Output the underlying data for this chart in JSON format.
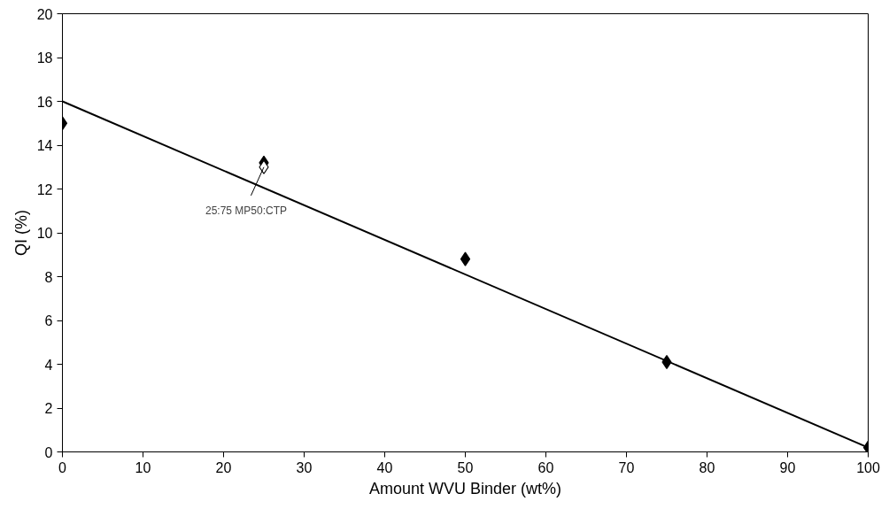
{
  "chart_data": {
    "type": "scatter",
    "xlabel": "Amount WVU Binder (wt%)",
    "ylabel": "QI (%)",
    "xlim": [
      0,
      100
    ],
    "ylim": [
      0,
      20
    ],
    "xticks": [
      0,
      10,
      20,
      30,
      40,
      50,
      60,
      70,
      80,
      90,
      100
    ],
    "yticks": [
      0,
      2,
      4,
      6,
      8,
      10,
      12,
      14,
      16,
      18,
      20
    ],
    "grid": false,
    "series": [
      {
        "marker": "diamond",
        "color": "#000000",
        "x": [
          0,
          25,
          50,
          75,
          100
        ],
        "values": [
          15,
          13.2,
          8.8,
          4.1,
          0.2
        ]
      },
      {
        "marker": "diamond",
        "color": "#ffffff",
        "x": [
          25
        ],
        "values": [
          13.0
        ]
      },
      {
        "type": "line",
        "marker": "none",
        "color": "#000000",
        "x": [
          0,
          100
        ],
        "values": [
          16,
          0.2
        ]
      }
    ],
    "annotations": [
      {
        "text": "25:75 MP50:CTP",
        "x": 25,
        "y": 13.0
      }
    ]
  }
}
